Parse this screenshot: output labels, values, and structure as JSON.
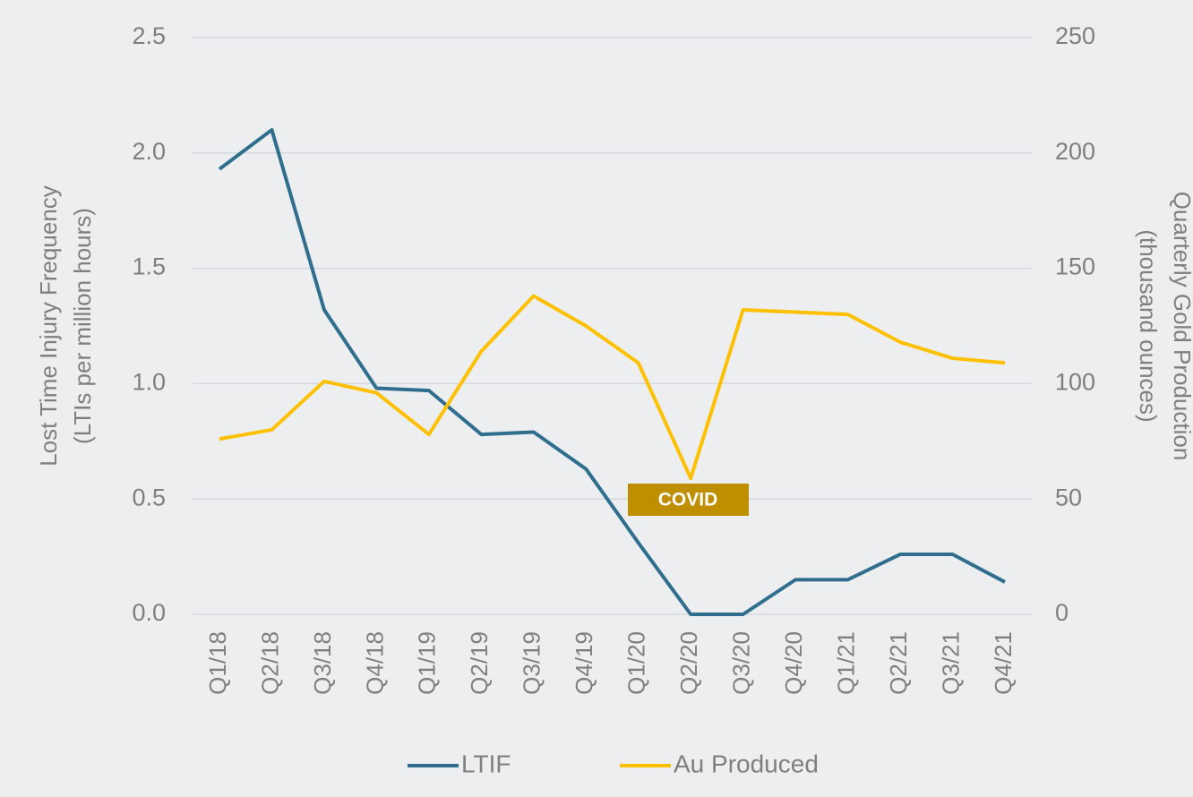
{
  "chart_data": {
    "type": "line",
    "categories": [
      "Q1/18",
      "Q2/18",
      "Q3/18",
      "Q4/18",
      "Q1/19",
      "Q2/19",
      "Q3/19",
      "Q4/19",
      "Q1/20",
      "Q2/20",
      "Q3/20",
      "Q4/20",
      "Q1/21",
      "Q2/21",
      "Q3/21",
      "Q4/21"
    ],
    "series": [
      {
        "name": "LTIF",
        "color": "#2f6e8c",
        "axis": "y",
        "values": [
          1.93,
          2.1,
          1.32,
          0.98,
          0.97,
          0.78,
          0.79,
          0.63,
          0.31,
          0,
          0,
          0.15,
          0.15,
          0.26,
          0.26,
          0.14
        ]
      },
      {
        "name": "Au Produced",
        "color": "#ffc000",
        "axis": "y2",
        "values": [
          76,
          80,
          101,
          96,
          78,
          114,
          138,
          125,
          109,
          59,
          132,
          131,
          130,
          118,
          111,
          109
        ]
      }
    ],
    "ylabel": [
      "Lost Time Injury Frequency",
      "(LTIs per million hours)"
    ],
    "y2label": [
      "Quarterly Gold Production",
      "(thousand ounces)"
    ],
    "ylim": [
      0,
      2.5
    ],
    "yticks": [
      {
        "value": 0,
        "label": "0.0"
      },
      0.5,
      {
        "value": 1,
        "label": "1.0"
      },
      1.5,
      {
        "value": 2,
        "label": "2.0"
      },
      2.5
    ],
    "y2lim": [
      0,
      250
    ],
    "y2ticks": [
      0,
      50,
      100,
      150,
      200,
      250
    ],
    "annotations": [
      {
        "text": "COVID",
        "color": "#bf8f00"
      }
    ],
    "grid": true,
    "legend": "bottom"
  }
}
